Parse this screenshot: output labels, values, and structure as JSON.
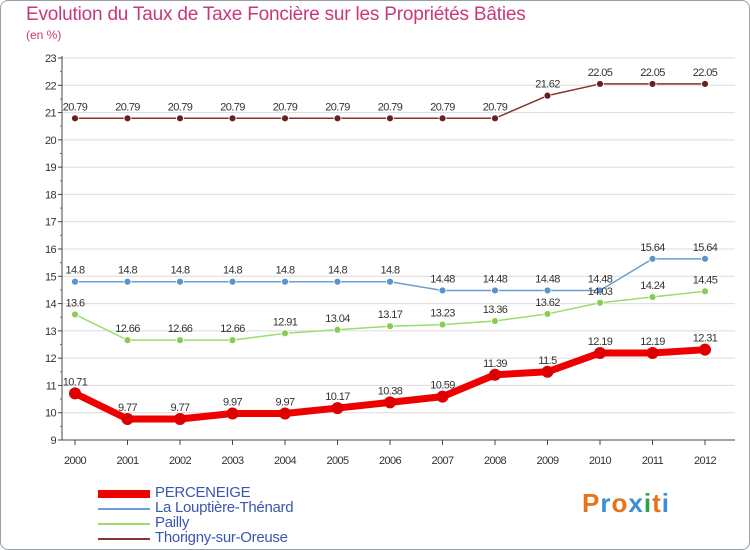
{
  "title": "Evolution du Taux de Taxe Foncière sur les Propriétés Bâties",
  "subtitle": "(en %)",
  "logo": {
    "letters": [
      "P",
      "r",
      "o",
      "x",
      "i",
      "t",
      "i"
    ],
    "colors": [
      "#e8731a",
      "#3a8fd6",
      "#e8731a",
      "#3a8fd6",
      "#2aa54a",
      "#e8731a",
      "#3a8fd6"
    ]
  },
  "chart_data": {
    "type": "line",
    "title": "Evolution du Taux de Taxe Foncière sur les Propriétés Bâties",
    "ylabel": "(en %)",
    "ylim": [
      9,
      23
    ],
    "yticks": [
      9,
      10,
      11,
      12,
      13,
      14,
      15,
      16,
      17,
      18,
      19,
      20,
      21,
      22,
      23
    ],
    "x": [
      "2000",
      "2001",
      "2002",
      "2003",
      "2004",
      "2005",
      "2006",
      "2007",
      "2008",
      "2009",
      "2010",
      "2011",
      "2012"
    ],
    "series": [
      {
        "name": "PERCENEIGE",
        "color": "#ee0000",
        "marker": "#dd0000",
        "width": 7,
        "markerR": 6,
        "values": [
          10.71,
          9.77,
          9.77,
          9.97,
          9.97,
          10.17,
          10.38,
          10.59,
          11.39,
          11.5,
          12.19,
          12.19,
          12.31
        ],
        "labels": [
          "10.71",
          "9.77",
          "9.77",
          "9.97",
          "9.97",
          "10.17",
          "10.38",
          "10.59",
          "11.39",
          "11.5",
          "12.19",
          "12.19",
          "12.31"
        ]
      },
      {
        "name": "La Louptière-Thénard",
        "color": "#6a9fcf",
        "marker": "#5b94cc",
        "width": 1.5,
        "markerR": 3.5,
        "values": [
          14.8,
          14.8,
          14.8,
          14.8,
          14.8,
          14.8,
          14.8,
          14.48,
          14.48,
          14.48,
          14.48,
          15.64,
          15.64
        ],
        "labels": [
          "14.8",
          "14.8",
          "14.8",
          "14.8",
          "14.8",
          "14.8",
          "14.8",
          "14.48",
          "14.48",
          "14.48",
          "14.48",
          "15.64",
          "15.64"
        ]
      },
      {
        "name": "Pailly",
        "color": "#99dd66",
        "marker": "#88cc55",
        "width": 1.5,
        "markerR": 3.5,
        "values": [
          13.6,
          12.66,
          12.66,
          12.66,
          12.91,
          13.04,
          13.17,
          13.23,
          13.36,
          13.62,
          14.03,
          14.24,
          14.45
        ],
        "labels": [
          "13.6",
          "12.66",
          "12.66",
          "12.66",
          "12.91",
          "13.04",
          "13.17",
          "13.23",
          "13.36",
          "13.62",
          "14.03",
          "14.24",
          "14.45"
        ]
      },
      {
        "name": "Thorigny-sur-Oreuse",
        "color": "#883333",
        "marker": "#6a1f1f",
        "width": 1.5,
        "markerR": 3.5,
        "values": [
          20.79,
          20.79,
          20.79,
          20.79,
          20.79,
          20.79,
          20.79,
          20.79,
          20.79,
          21.62,
          22.05,
          22.05,
          22.05
        ],
        "labels": [
          "20.79",
          "20.79",
          "20.79",
          "20.79",
          "20.79",
          "20.79",
          "20.79",
          "20.79",
          "20.79",
          "21.62",
          "22.05",
          "22.05",
          "22.05"
        ]
      }
    ]
  }
}
